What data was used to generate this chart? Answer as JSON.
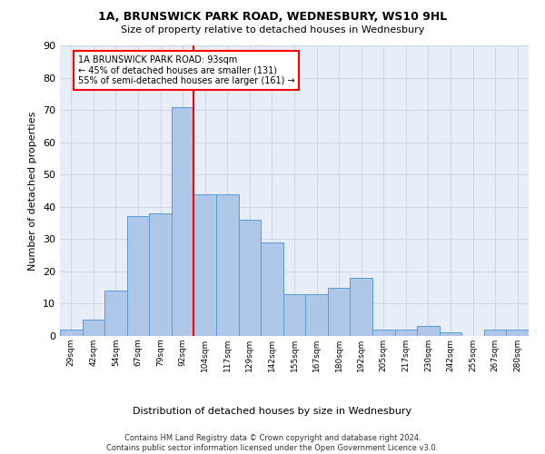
{
  "title1": "1A, BRUNSWICK PARK ROAD, WEDNESBURY, WS10 9HL",
  "title2": "Size of property relative to detached houses in Wednesbury",
  "xlabel": "Distribution of detached houses by size in Wednesbury",
  "ylabel": "Number of detached properties",
  "bin_labels": [
    "29sqm",
    "42sqm",
    "54sqm",
    "67sqm",
    "79sqm",
    "92sqm",
    "104sqm",
    "117sqm",
    "129sqm",
    "142sqm",
    "155sqm",
    "167sqm",
    "180sqm",
    "192sqm",
    "205sqm",
    "217sqm",
    "230sqm",
    "242sqm",
    "255sqm",
    "267sqm",
    "280sqm"
  ],
  "bar_heights": [
    2,
    5,
    14,
    37,
    38,
    71,
    44,
    44,
    36,
    29,
    13,
    13,
    15,
    18,
    2,
    2,
    3,
    1,
    0,
    2,
    2
  ],
  "bar_color": "#aec6e8",
  "bar_edge_color": "#5b9bd5",
  "annotation_text": "1A BRUNSWICK PARK ROAD: 93sqm\n← 45% of detached houses are smaller (131)\n55% of semi-detached houses are larger (161) →",
  "annotation_box_color": "white",
  "annotation_box_edge": "red",
  "grid_color": "#d0d8e8",
  "background_color": "#e8eef8",
  "footer": "Contains HM Land Registry data © Crown copyright and database right 2024.\nContains public sector information licensed under the Open Government Licence v3.0.",
  "ylim": [
    0,
    90
  ],
  "yticks": [
    0,
    10,
    20,
    30,
    40,
    50,
    60,
    70,
    80,
    90
  ]
}
